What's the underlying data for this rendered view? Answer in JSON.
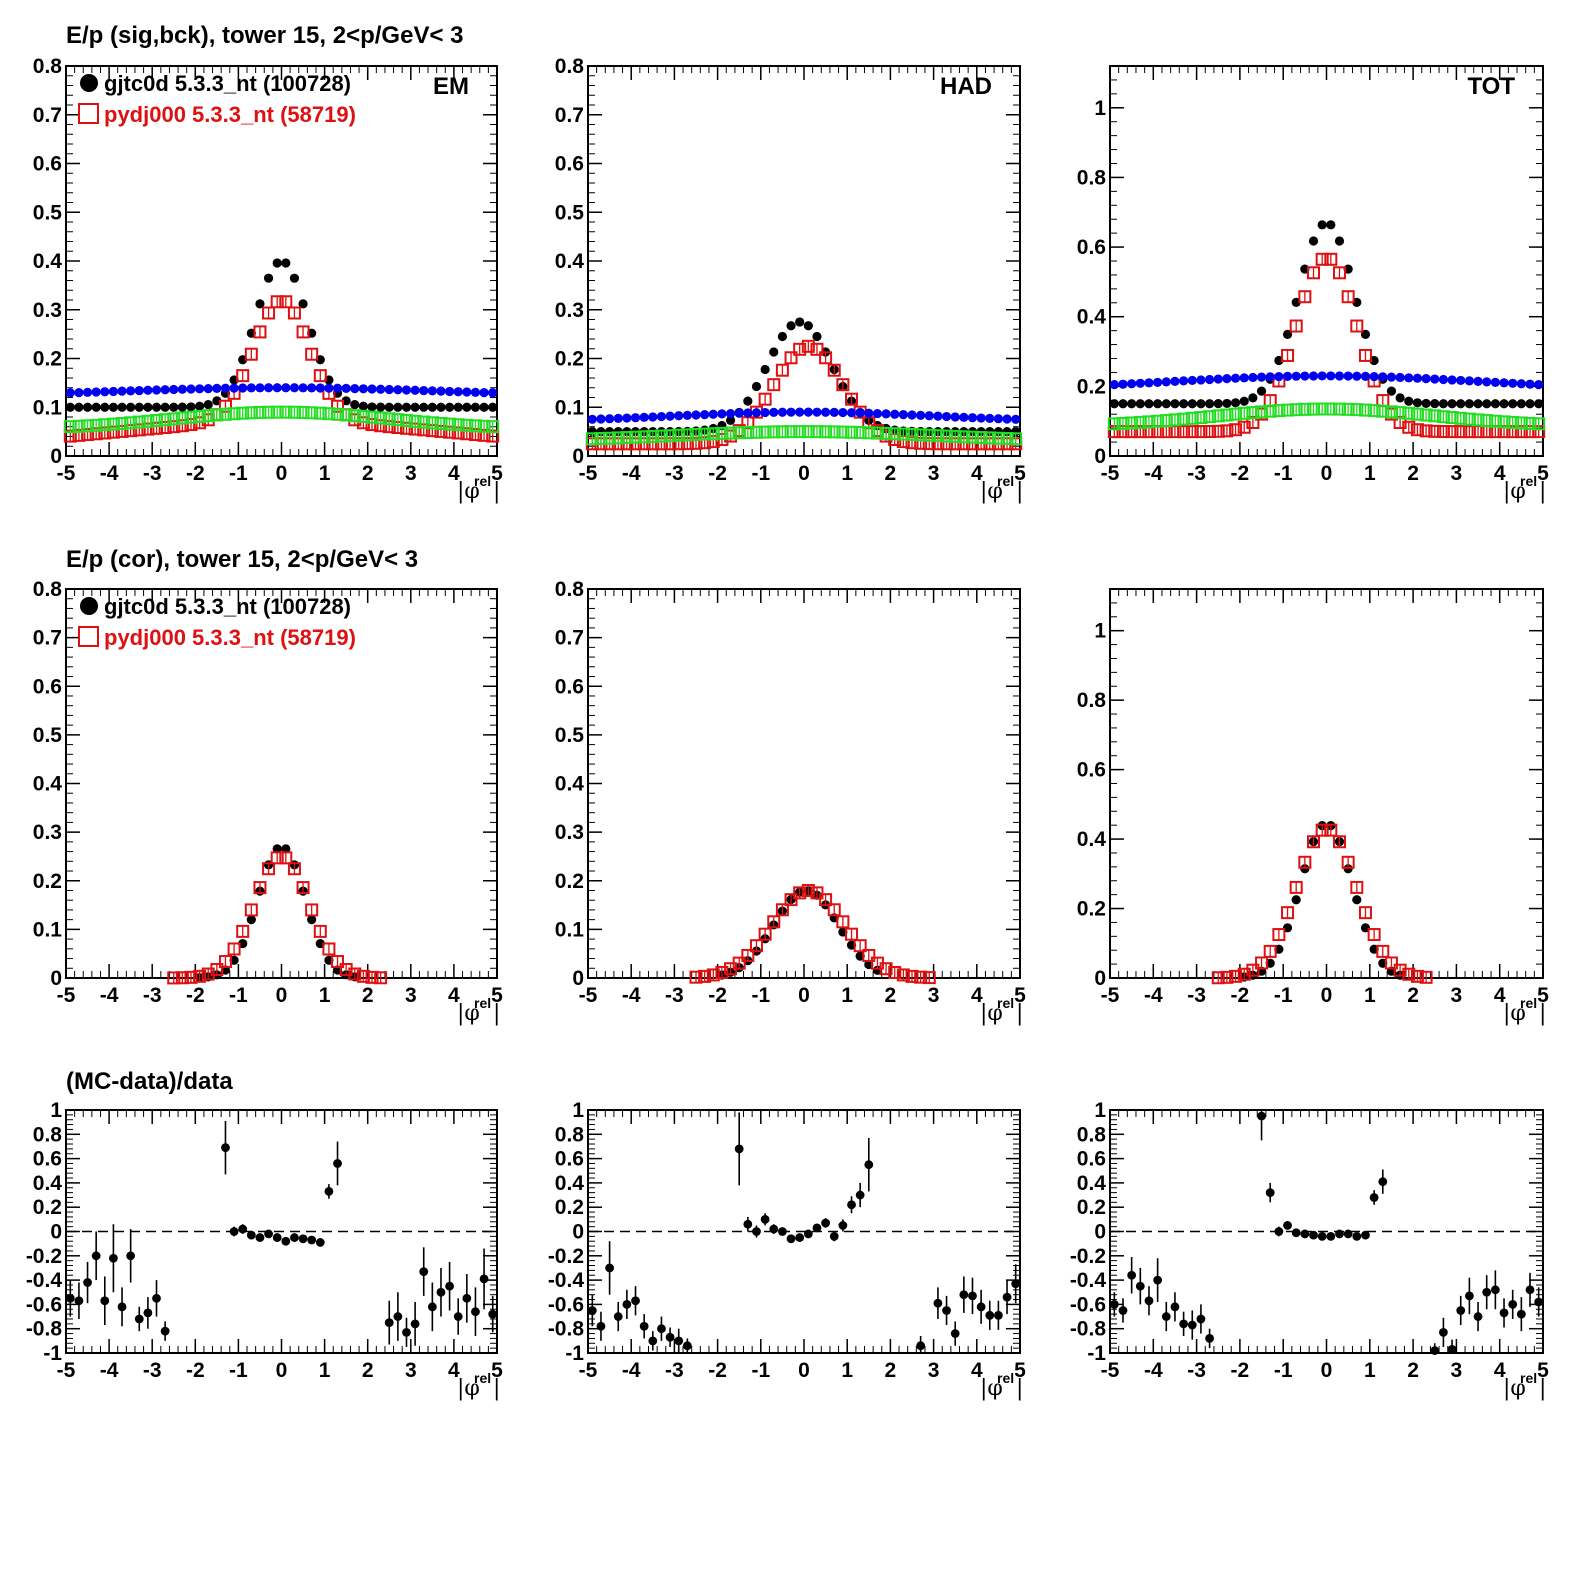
{
  "titles": {
    "row1": "E/p (sig,bck), tower 15,  2<p/GeV< 3",
    "row2": "E/p (cor), tower 15,  2<p/GeV< 3",
    "row3": "(MC-data)/data"
  },
  "xaxis_label": {
    "main": "|φ",
    "sup": "rel",
    "end": "|"
  },
  "colors": {
    "data": "#000000",
    "mc": "#dd1111",
    "bkg_data": "#0000ee",
    "bkg_mc": "#22dd22"
  },
  "chart_data": [
    {
      "type": "scatter",
      "panel": "row1-EM",
      "label": "EM",
      "xlim": [
        -5,
        5
      ],
      "ylim": [
        0,
        0.8
      ],
      "yticks": [
        0,
        0.1,
        0.2,
        0.3,
        0.4,
        0.5,
        0.6,
        0.7,
        0.8
      ],
      "xticks": [
        -5,
        -4,
        -3,
        -2,
        -1,
        0,
        1,
        2,
        3,
        4,
        5
      ],
      "legend": {
        "placement": "top-left",
        "entries": [
          {
            "text": "gjtc0d 5.3.3_nt (100728)",
            "series": "data"
          },
          {
            "text": "pydj000 5.3.3_nt (58719)",
            "series": "mc"
          }
        ]
      },
      "series": [
        {
          "role": "data",
          "amp": 0.3,
          "sigma": 0.6,
          "base": 0.1
        },
        {
          "role": "mc",
          "amp": 0.24,
          "sigma": 0.65,
          "base": 0.04,
          "baseslope": 0.04
        },
        {
          "role": "bkg_data",
          "amp": 0.02,
          "sigma": 4.0,
          "base": 0.12
        },
        {
          "role": "bkg_mc",
          "amp": 0.035,
          "sigma": 2.5,
          "base": 0.055
        }
      ]
    },
    {
      "type": "scatter",
      "panel": "row1-HAD",
      "label": "HAD",
      "xlim": [
        -5,
        5
      ],
      "ylim": [
        0,
        0.8
      ],
      "yticks": [
        0,
        0.1,
        0.2,
        0.3,
        0.4,
        0.5,
        0.6,
        0.7,
        0.8
      ],
      "xticks": [
        -5,
        -4,
        -3,
        -2,
        -1,
        0,
        1,
        2,
        3,
        4,
        5
      ],
      "series": [
        {
          "role": "data",
          "amp": 0.225,
          "sigma": 0.75,
          "base": 0.05,
          "mu": -0.1
        },
        {
          "role": "mc",
          "amp": 0.2,
          "sigma": 0.8,
          "base": 0.025,
          "mu": 0.1
        },
        {
          "role": "bkg_data",
          "amp": 0.02,
          "sigma": 3.0,
          "base": 0.07
        },
        {
          "role": "bkg_mc",
          "amp": 0.02,
          "sigma": 3.0,
          "base": 0.03
        }
      ]
    },
    {
      "type": "scatter",
      "panel": "row1-TOT",
      "label": "TOT",
      "xlim": [
        -5,
        5
      ],
      "ylim": [
        0,
        1.12
      ],
      "yticks": [
        0,
        0.2,
        0.4,
        0.6,
        0.8,
        1
      ],
      "xticks": [
        -5,
        -4,
        -3,
        -2,
        -1,
        0,
        1,
        2,
        3,
        4,
        5
      ],
      "series": [
        {
          "role": "data",
          "amp": 0.52,
          "sigma": 0.65,
          "base": 0.15
        },
        {
          "role": "mc",
          "amp": 0.5,
          "sigma": 0.7,
          "base": 0.07
        },
        {
          "role": "bkg_data",
          "amp": 0.04,
          "sigma": 3.5,
          "base": 0.19
        },
        {
          "role": "bkg_mc",
          "amp": 0.05,
          "sigma": 2.5,
          "base": 0.085
        }
      ]
    },
    {
      "type": "scatter",
      "panel": "row2-EM",
      "xlim": [
        -5,
        5
      ],
      "ylim": [
        0,
        0.8
      ],
      "yticks": [
        0,
        0.1,
        0.2,
        0.3,
        0.4,
        0.5,
        0.6,
        0.7,
        0.8
      ],
      "xticks": [
        -5,
        -4,
        -3,
        -2,
        -1,
        0,
        1,
        2,
        3,
        4,
        5
      ],
      "legend": {
        "placement": "top-left",
        "entries": [
          {
            "text": "gjtc0d 5.3.3_nt (100728)",
            "series": "data"
          },
          {
            "text": "pydj000 5.3.3_nt (58719)",
            "series": "mc"
          }
        ]
      },
      "series": [
        {
          "role": "data",
          "amp": 0.27,
          "sigma": 0.55,
          "range": [
            -2.0,
            1.8
          ]
        },
        {
          "role": "mc",
          "amp": 0.25,
          "sigma": 0.65,
          "range": [
            -2.5,
            2.3
          ]
        }
      ]
    },
    {
      "type": "scatter",
      "panel": "row2-HAD",
      "xlim": [
        -5,
        5
      ],
      "ylim": [
        0,
        0.8
      ],
      "yticks": [
        0,
        0.1,
        0.2,
        0.3,
        0.4,
        0.5,
        0.6,
        0.7,
        0.8
      ],
      "xticks": [
        -5,
        -4,
        -3,
        -2,
        -1,
        0,
        1,
        2,
        3,
        4,
        5
      ],
      "series": [
        {
          "role": "data",
          "amp": 0.18,
          "sigma": 0.75,
          "range": [
            -2.0,
            1.9
          ],
          "mu": 0.05
        },
        {
          "role": "mc",
          "amp": 0.18,
          "sigma": 0.85,
          "range": [
            -2.5,
            3.0
          ],
          "mu": 0.1
        }
      ]
    },
    {
      "type": "scatter",
      "panel": "row2-TOT",
      "xlim": [
        -5,
        5
      ],
      "ylim": [
        0,
        1.12
      ],
      "yticks": [
        0,
        0.2,
        0.4,
        0.6,
        0.8,
        1
      ],
      "xticks": [
        -5,
        -4,
        -3,
        -2,
        -1,
        0,
        1,
        2,
        3,
        4,
        5
      ],
      "series": [
        {
          "role": "data",
          "amp": 0.445,
          "sigma": 0.6,
          "range": [
            -2.0,
            1.8
          ]
        },
        {
          "role": "mc",
          "amp": 0.43,
          "sigma": 0.7,
          "range": [
            -2.5,
            2.3
          ]
        }
      ]
    },
    {
      "type": "scatter",
      "panel": "row3-EM",
      "xlim": [
        -5,
        5
      ],
      "ylim": [
        -1,
        1
      ],
      "ref_line": 0,
      "yticks": [
        -1,
        -0.8,
        -0.6,
        -0.4,
        -0.2,
        0,
        0.2,
        0.4,
        0.6,
        0.8,
        1
      ],
      "xticks": [
        -5,
        -4,
        -3,
        -2,
        -1,
        0,
        1,
        2,
        3,
        4,
        5
      ],
      "points": [
        [
          -4.9,
          -0.55,
          0.15
        ],
        [
          -4.7,
          -0.57,
          0.15
        ],
        [
          -4.5,
          -0.42,
          0.17
        ],
        [
          -4.3,
          -0.2,
          0.2
        ],
        [
          -4.1,
          -0.57,
          0.2
        ],
        [
          -3.9,
          -0.22,
          0.28
        ],
        [
          -3.7,
          -0.62,
          0.16
        ],
        [
          -3.5,
          -0.2,
          0.22
        ],
        [
          -3.3,
          -0.72,
          0.1
        ],
        [
          -3.1,
          -0.67,
          0.13
        ],
        [
          -2.9,
          -0.55,
          0.15
        ],
        [
          -2.7,
          -0.82,
          0.08
        ],
        [
          -1.3,
          0.69,
          0.22
        ],
        [
          -1.1,
          0.0,
          0.04
        ],
        [
          -0.9,
          0.02,
          0.04
        ],
        [
          -0.7,
          -0.03,
          0.03
        ],
        [
          -0.5,
          -0.05,
          0.02
        ],
        [
          -0.3,
          -0.02,
          0.02
        ],
        [
          -0.1,
          -0.05,
          0.02
        ],
        [
          0.1,
          -0.08,
          0.02
        ],
        [
          0.3,
          -0.05,
          0.02
        ],
        [
          0.5,
          -0.06,
          0.02
        ],
        [
          0.7,
          -0.07,
          0.02
        ],
        [
          0.9,
          -0.09,
          0.03
        ],
        [
          1.1,
          0.33,
          0.06
        ],
        [
          1.3,
          0.56,
          0.18
        ],
        [
          2.5,
          -0.75,
          0.18
        ],
        [
          2.7,
          -0.7,
          0.2
        ],
        [
          2.9,
          -0.83,
          0.12
        ],
        [
          3.1,
          -0.76,
          0.18
        ],
        [
          3.3,
          -0.33,
          0.2
        ],
        [
          3.5,
          -0.62,
          0.2
        ],
        [
          3.7,
          -0.5,
          0.2
        ],
        [
          3.9,
          -0.45,
          0.2
        ],
        [
          4.1,
          -0.7,
          0.15
        ],
        [
          4.3,
          -0.55,
          0.2
        ],
        [
          4.5,
          -0.66,
          0.2
        ],
        [
          4.7,
          -0.39,
          0.25
        ],
        [
          4.9,
          -0.68,
          0.15
        ]
      ]
    },
    {
      "type": "scatter",
      "panel": "row3-HAD",
      "xlim": [
        -5,
        5
      ],
      "ylim": [
        -1,
        1
      ],
      "ref_line": 0,
      "yticks": [
        -1,
        -0.8,
        -0.6,
        -0.4,
        -0.2,
        0,
        0.2,
        0.4,
        0.6,
        0.8,
        1
      ],
      "xticks": [
        -5,
        -4,
        -3,
        -2,
        -1,
        0,
        1,
        2,
        3,
        4,
        5
      ],
      "points": [
        [
          -4.9,
          -0.65,
          0.13
        ],
        [
          -4.7,
          -0.78,
          0.12
        ],
        [
          -4.5,
          -0.3,
          0.22
        ],
        [
          -4.3,
          -0.7,
          0.12
        ],
        [
          -4.1,
          -0.6,
          0.12
        ],
        [
          -3.9,
          -0.57,
          0.12
        ],
        [
          -3.7,
          -0.78,
          0.1
        ],
        [
          -3.5,
          -0.9,
          0.08
        ],
        [
          -3.3,
          -0.8,
          0.1
        ],
        [
          -3.1,
          -0.87,
          0.08
        ],
        [
          -2.9,
          -0.9,
          0.1
        ],
        [
          -2.7,
          -0.94,
          0.06
        ],
        [
          -1.5,
          0.68,
          0.3
        ],
        [
          -1.3,
          0.06,
          0.06
        ],
        [
          -1.1,
          0.0,
          0.05
        ],
        [
          -0.9,
          0.1,
          0.05
        ],
        [
          -0.7,
          0.02,
          0.04
        ],
        [
          -0.5,
          0.0,
          0.03
        ],
        [
          -0.3,
          -0.06,
          0.03
        ],
        [
          -0.1,
          -0.05,
          0.03
        ],
        [
          0.1,
          -0.02,
          0.03
        ],
        [
          0.3,
          0.03,
          0.03
        ],
        [
          0.5,
          0.07,
          0.04
        ],
        [
          0.7,
          -0.04,
          0.04
        ],
        [
          0.9,
          0.05,
          0.05
        ],
        [
          1.1,
          0.22,
          0.07
        ],
        [
          1.3,
          0.3,
          0.1
        ],
        [
          1.5,
          0.55,
          0.22
        ],
        [
          2.7,
          -0.94,
          0.08
        ],
        [
          3.1,
          -0.59,
          0.13
        ],
        [
          3.3,
          -0.65,
          0.12
        ],
        [
          3.5,
          -0.84,
          0.1
        ],
        [
          3.7,
          -0.52,
          0.15
        ],
        [
          3.9,
          -0.53,
          0.15
        ],
        [
          4.1,
          -0.62,
          0.14
        ],
        [
          4.3,
          -0.69,
          0.12
        ],
        [
          4.5,
          -0.69,
          0.12
        ],
        [
          4.7,
          -0.54,
          0.14
        ],
        [
          4.9,
          -0.43,
          0.16
        ]
      ]
    },
    {
      "type": "scatter",
      "panel": "row3-TOT",
      "xlim": [
        -5,
        5
      ],
      "ylim": [
        -1,
        1
      ],
      "ref_line": 0,
      "yticks": [
        -1,
        -0.8,
        -0.6,
        -0.4,
        -0.2,
        0,
        0.2,
        0.4,
        0.6,
        0.8,
        1
      ],
      "xticks": [
        -5,
        -4,
        -3,
        -2,
        -1,
        0,
        1,
        2,
        3,
        4,
        5
      ],
      "points": [
        [
          -4.9,
          -0.6,
          0.1
        ],
        [
          -4.7,
          -0.65,
          0.1
        ],
        [
          -4.5,
          -0.36,
          0.15
        ],
        [
          -4.3,
          -0.45,
          0.15
        ],
        [
          -4.1,
          -0.57,
          0.12
        ],
        [
          -3.9,
          -0.4,
          0.18
        ],
        [
          -3.7,
          -0.7,
          0.12
        ],
        [
          -3.5,
          -0.62,
          0.12
        ],
        [
          -3.3,
          -0.76,
          0.1
        ],
        [
          -3.1,
          -0.77,
          0.12
        ],
        [
          -2.9,
          -0.72,
          0.12
        ],
        [
          -2.7,
          -0.88,
          0.08
        ],
        [
          -1.5,
          0.95,
          0.2
        ],
        [
          -1.3,
          0.32,
          0.08
        ],
        [
          -1.1,
          0.0,
          0.04
        ],
        [
          -0.9,
          0.05,
          0.03
        ],
        [
          -0.7,
          -0.01,
          0.02
        ],
        [
          -0.5,
          -0.02,
          0.02
        ],
        [
          -0.3,
          -0.03,
          0.02
        ],
        [
          -0.1,
          -0.04,
          0.02
        ],
        [
          0.1,
          -0.04,
          0.02
        ],
        [
          0.3,
          -0.02,
          0.02
        ],
        [
          0.5,
          -0.02,
          0.02
        ],
        [
          0.7,
          -0.04,
          0.02
        ],
        [
          0.9,
          -0.03,
          0.03
        ],
        [
          1.1,
          0.28,
          0.06
        ],
        [
          1.3,
          0.41,
          0.1
        ],
        [
          2.5,
          -0.98,
          0.06
        ],
        [
          2.7,
          -0.83,
          0.12
        ],
        [
          2.9,
          -0.97,
          0.08
        ],
        [
          3.1,
          -0.65,
          0.12
        ],
        [
          3.3,
          -0.53,
          0.15
        ],
        [
          3.5,
          -0.7,
          0.12
        ],
        [
          3.7,
          -0.5,
          0.14
        ],
        [
          3.9,
          -0.48,
          0.16
        ],
        [
          4.1,
          -0.67,
          0.12
        ],
        [
          4.3,
          -0.6,
          0.12
        ],
        [
          4.5,
          -0.68,
          0.14
        ],
        [
          4.7,
          -0.48,
          0.14
        ],
        [
          4.9,
          -0.58,
          0.12
        ]
      ]
    }
  ]
}
